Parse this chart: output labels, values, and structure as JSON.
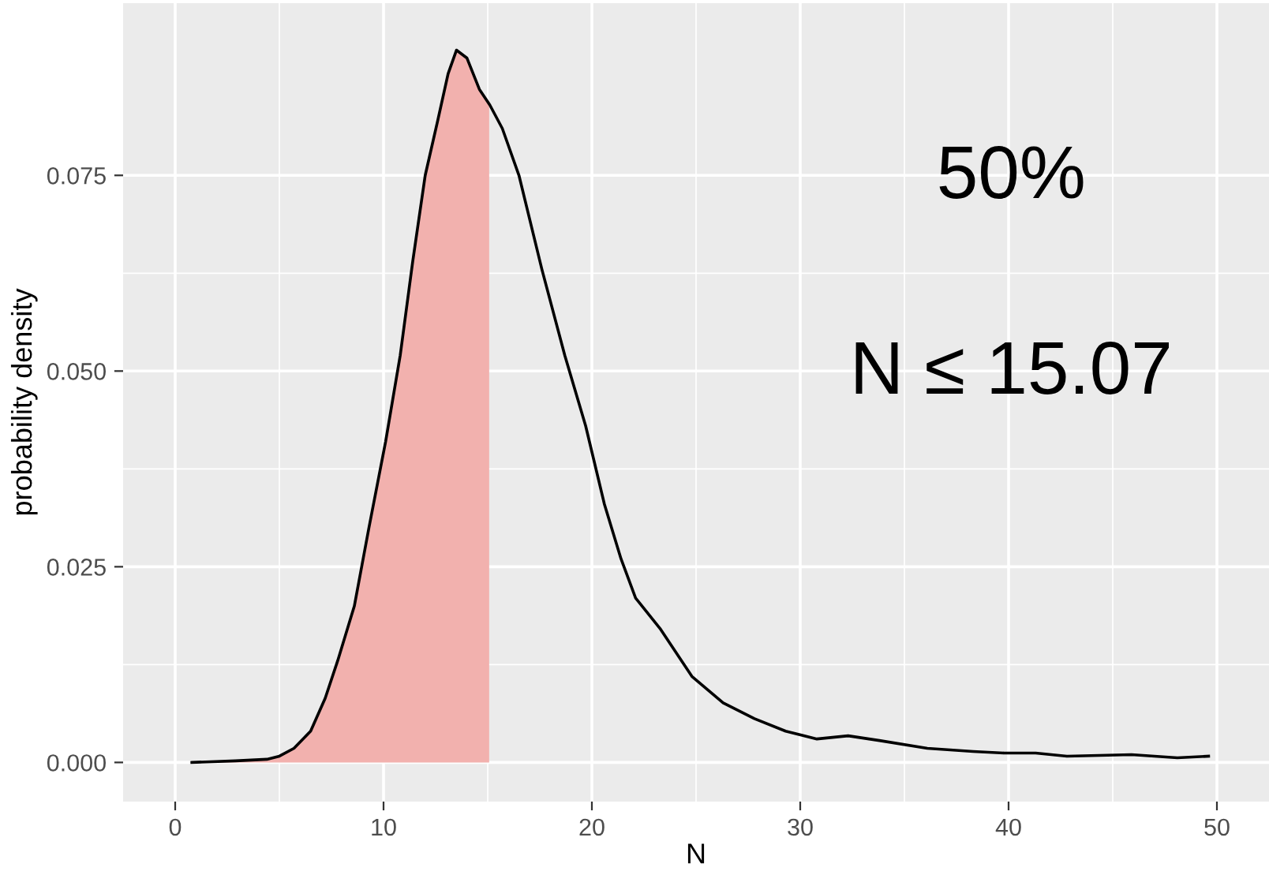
{
  "chart_data": {
    "type": "line",
    "xlabel": "N",
    "ylabel": "probability density",
    "xlim": [
      -2.5,
      52.5
    ],
    "ylim": [
      -0.005,
      0.097
    ],
    "xticks": [
      0,
      10,
      20,
      30,
      40,
      50
    ],
    "yticks": [
      {
        "value": 0,
        "label": "0.000"
      },
      {
        "value": 0.025,
        "label": "0.025"
      },
      {
        "value": 0.05,
        "label": "0.050"
      },
      {
        "value": 0.075,
        "label": "0.075"
      }
    ],
    "grid": true,
    "legend": false,
    "annotations": [
      "50%",
      "N ≤ 15.07"
    ],
    "series": [
      {
        "type": "area",
        "color": "#f2b1ae",
        "x": [
          0.8,
          2.9,
          4.4,
          5.0,
          5.7,
          6.5,
          7.2,
          7.8,
          8.6,
          9.3,
          10.1,
          10.8,
          11.4,
          12.0,
          12.6,
          13.1,
          13.5,
          14.0,
          14.6,
          15.07
        ],
        "values": [
          0,
          0.0002,
          0.0004,
          0.0008,
          0.0018,
          0.004,
          0.0082,
          0.013,
          0.02,
          0.03,
          0.041,
          0.052,
          0.064,
          0.075,
          0.082,
          0.088,
          0.091,
          0.09,
          0.086,
          0.084
        ]
      },
      {
        "color": "#000000",
        "x": [
          0.8,
          2.9,
          4.4,
          5.0,
          5.7,
          6.5,
          7.2,
          7.8,
          8.6,
          9.3,
          10.1,
          10.8,
          11.4,
          12.0,
          12.6,
          13.1,
          13.5,
          14.0,
          14.6,
          15.1,
          15.7,
          16.5,
          17.6,
          18.7,
          19.7,
          20.6,
          21.4,
          22.1,
          23.3,
          24.8,
          26.3,
          27.8,
          29.3,
          30.8,
          32.3,
          33.8,
          36.1,
          38.3,
          39.8,
          41.3,
          42.8,
          45.9,
          48.1,
          49.6
        ],
        "values": [
          0,
          0.0002,
          0.0004,
          0.0008,
          0.0018,
          0.004,
          0.0082,
          0.013,
          0.02,
          0.03,
          0.041,
          0.052,
          0.064,
          0.075,
          0.082,
          0.088,
          0.091,
          0.09,
          0.086,
          0.084,
          0.081,
          0.075,
          0.063,
          0.052,
          0.043,
          0.033,
          0.026,
          0.021,
          0.017,
          0.011,
          0.0076,
          0.0056,
          0.004,
          0.003,
          0.0034,
          0.0028,
          0.0018,
          0.0014,
          0.0012,
          0.0012,
          0.0008,
          0.001,
          0.0006,
          0.0008
        ]
      }
    ]
  }
}
